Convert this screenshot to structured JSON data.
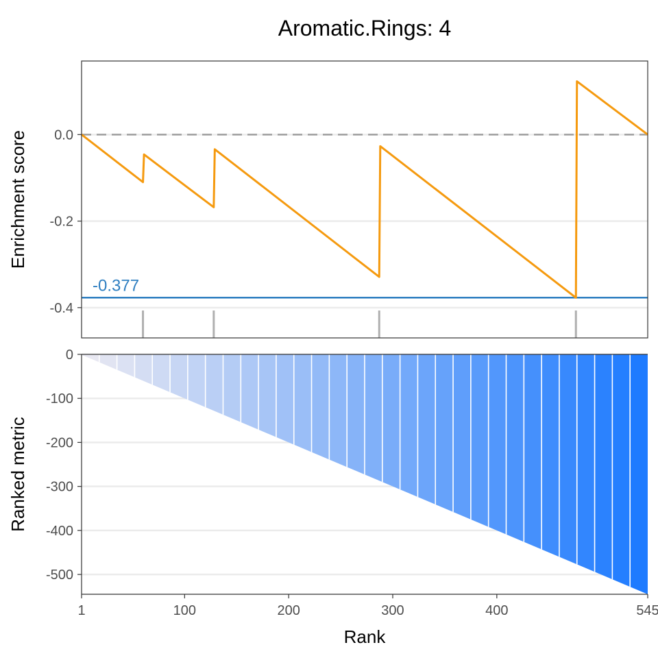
{
  "chart_data": {
    "type": "line",
    "title": "Aromatic.Rings: 4",
    "colors": {
      "running_es": "#f59a0f",
      "min_es_line": "#2f7fc1",
      "zero_line": "#9e9e9e",
      "hit_ticks": "#b0b0b0",
      "metric_gradient_start": "#e8e8f2",
      "metric_gradient_end": "#1e7bff",
      "grid": "#ebebeb"
    },
    "enrichment_panel": {
      "ylabel": "Enrichment score",
      "ylim": [
        -0.47,
        0.17
      ],
      "yticks": [
        0.0,
        -0.2,
        -0.4
      ],
      "ytick_labels": [
        "0.0",
        "-0.2",
        "-0.4"
      ],
      "min_es": -0.377,
      "min_es_label": "-0.377",
      "hit_ranks": [
        60,
        128,
        287,
        476
      ],
      "series": [
        {
          "x": [
            1,
            60,
            61,
            128,
            129,
            287,
            288,
            476,
            477,
            545
          ],
          "y": [
            0.0,
            -0.11,
            -0.046,
            -0.168,
            -0.034,
            -0.329,
            -0.027,
            -0.377,
            0.123,
            0.0
          ]
        }
      ]
    },
    "metric_panel": {
      "ylabel": "Ranked metric",
      "ylim": [
        -545,
        0
      ],
      "yticks": [
        0,
        -100,
        -200,
        -300,
        -400,
        -500
      ],
      "ytick_labels": [
        "0",
        "-100",
        "-200",
        "-300",
        "-400",
        "-500"
      ],
      "metric_formula": "metric = -rank",
      "xlabel": "Rank",
      "xlim": [
        1,
        545
      ],
      "xticks": [
        1,
        100,
        200,
        300,
        400,
        545
      ],
      "xtick_labels": [
        "1",
        "100",
        "200",
        "300",
        "400",
        "545"
      ],
      "bands": 32
    }
  }
}
